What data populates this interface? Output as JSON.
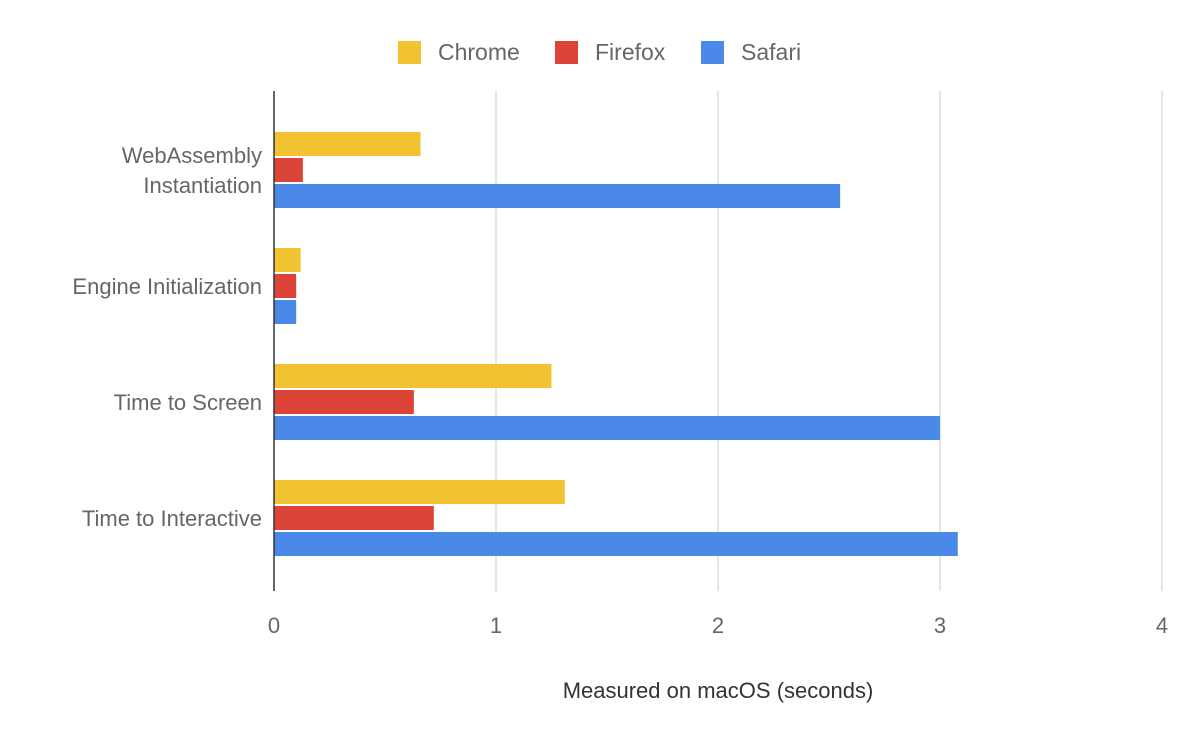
{
  "chart_data": {
    "type": "bar",
    "orientation": "horizontal",
    "categories": [
      [
        "WebAssembly",
        "Instantiation"
      ],
      [
        "Engine Initialization"
      ],
      [
        "Time to Screen"
      ],
      [
        "Time to Interactive"
      ]
    ],
    "series": [
      {
        "name": "Chrome",
        "color": "#F1C232",
        "values": [
          0.66,
          0.12,
          1.25,
          1.31
        ]
      },
      {
        "name": "Firefox",
        "color": "#DB4437",
        "values": [
          0.13,
          0.1,
          0.63,
          0.72
        ]
      },
      {
        "name": "Safari",
        "color": "#4A89E8",
        "values": [
          2.55,
          0.1,
          3.0,
          3.08
        ]
      }
    ],
    "xlim": [
      0,
      4
    ],
    "xticks": [
      "0",
      "1",
      "2",
      "3",
      "4"
    ],
    "xlabel": "Measured on macOS (seconds)",
    "ylabel": "",
    "title": "",
    "grid": true,
    "legend_position": "top-center"
  }
}
